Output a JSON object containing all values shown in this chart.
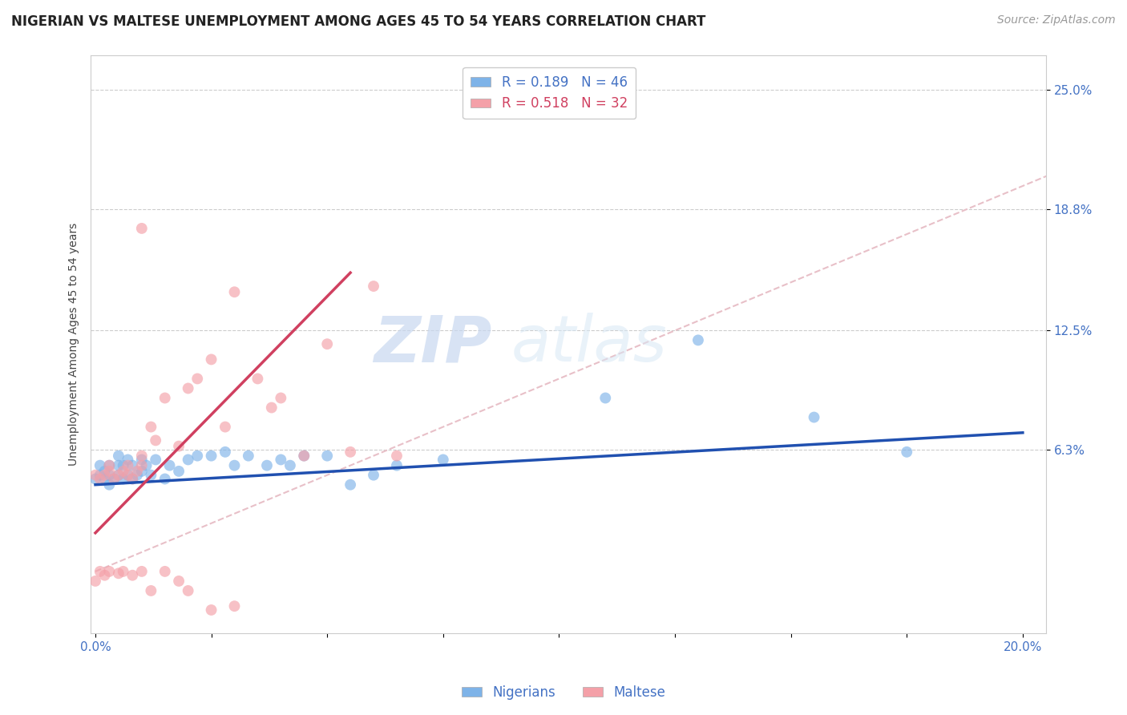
{
  "title": "NIGERIAN VS MALTESE UNEMPLOYMENT AMONG AGES 45 TO 54 YEARS CORRELATION CHART",
  "source": "Source: ZipAtlas.com",
  "ylabel": "Unemployment Among Ages 45 to 54 years",
  "xlim": [
    -0.001,
    0.205
  ],
  "ylim": [
    -0.032,
    0.268
  ],
  "xtick_positions": [
    0.0,
    0.025,
    0.05,
    0.075,
    0.1,
    0.125,
    0.15,
    0.175,
    0.2
  ],
  "xticklabels": [
    "0.0%",
    "",
    "",
    "",
    "",
    "",
    "",
    "",
    "20.0%"
  ],
  "ytick_positions": [
    0.063,
    0.125,
    0.188,
    0.25
  ],
  "ytick_labels": [
    "6.3%",
    "12.5%",
    "18.8%",
    "25.0%"
  ],
  "nigerian_color": "#7EB3E8",
  "maltese_color": "#F4A0A8",
  "nigerian_line_color": "#2050B0",
  "maltese_line_color": "#D04060",
  "reference_line_color": "#E8C0C8",
  "legend_r_nigerian": "R = 0.189",
  "legend_n_nigerian": "N = 46",
  "legend_r_maltese": "R = 0.518",
  "legend_n_maltese": "N = 32",
  "watermark_zip": "ZIP",
  "watermark_atlas": "atlas",
  "background_color": "#FFFFFF",
  "title_fontsize": 12,
  "axis_label_fontsize": 10,
  "tick_fontsize": 11,
  "legend_fontsize": 12,
  "source_fontsize": 10,
  "nigerian_x": [
    0.0,
    0.001,
    0.001,
    0.002,
    0.002,
    0.003,
    0.003,
    0.003,
    0.004,
    0.005,
    0.005,
    0.005,
    0.006,
    0.006,
    0.007,
    0.007,
    0.008,
    0.008,
    0.009,
    0.01,
    0.01,
    0.011,
    0.012,
    0.013,
    0.015,
    0.016,
    0.018,
    0.02,
    0.022,
    0.025,
    0.028,
    0.03,
    0.033,
    0.037,
    0.04,
    0.042,
    0.045,
    0.05,
    0.055,
    0.06,
    0.065,
    0.075,
    0.11,
    0.13,
    0.155,
    0.175
  ],
  "nigerian_y": [
    0.048,
    0.05,
    0.055,
    0.048,
    0.052,
    0.045,
    0.05,
    0.055,
    0.048,
    0.05,
    0.055,
    0.06,
    0.048,
    0.055,
    0.05,
    0.058,
    0.048,
    0.055,
    0.05,
    0.052,
    0.058,
    0.055,
    0.05,
    0.058,
    0.048,
    0.055,
    0.052,
    0.058,
    0.06,
    0.06,
    0.062,
    0.055,
    0.06,
    0.055,
    0.058,
    0.055,
    0.06,
    0.06,
    0.045,
    0.05,
    0.055,
    0.058,
    0.09,
    0.12,
    0.08,
    0.062
  ],
  "maltese_x": [
    0.0,
    0.001,
    0.002,
    0.003,
    0.003,
    0.004,
    0.005,
    0.006,
    0.007,
    0.007,
    0.008,
    0.009,
    0.01,
    0.01,
    0.012,
    0.013,
    0.015,
    0.018,
    0.02,
    0.022,
    0.025,
    0.028,
    0.03,
    0.035,
    0.038,
    0.04,
    0.045,
    0.05,
    0.055,
    0.06,
    0.065,
    0.01
  ],
  "maltese_y": [
    0.05,
    0.048,
    0.05,
    0.052,
    0.055,
    0.048,
    0.05,
    0.052,
    0.05,
    0.055,
    0.048,
    0.052,
    0.055,
    0.06,
    0.075,
    0.068,
    0.09,
    0.065,
    0.095,
    0.1,
    0.11,
    0.075,
    0.145,
    0.1,
    0.085,
    0.09,
    0.06,
    0.118,
    0.062,
    0.148,
    0.06,
    0.178
  ],
  "maltese_low_x": [
    0.0,
    0.001,
    0.002,
    0.003,
    0.005,
    0.006,
    0.008,
    0.01,
    0.012,
    0.015,
    0.018,
    0.02,
    0.025,
    0.03
  ],
  "maltese_low_y": [
    -0.005,
    0.0,
    -0.002,
    0.0,
    -0.001,
    0.0,
    -0.002,
    0.0,
    -0.01,
    0.0,
    -0.005,
    -0.01,
    -0.02,
    -0.018
  ],
  "nigerian_trend_x": [
    0.0,
    0.2
  ],
  "nigerian_trend_y": [
    0.045,
    0.072
  ],
  "maltese_trend_x": [
    0.0,
    0.055
  ],
  "maltese_trend_y": [
    0.02,
    0.155
  ]
}
